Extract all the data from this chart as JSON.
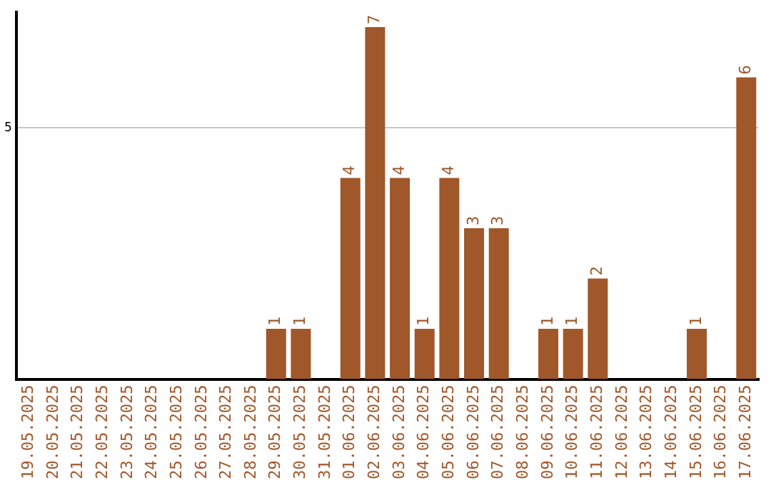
{
  "chart_data": {
    "type": "bar",
    "categories": [
      "19.05.2025",
      "20.05.2025",
      "21.05.2025",
      "22.05.2025",
      "23.05.2025",
      "24.05.2025",
      "25.05.2025",
      "26.05.2025",
      "27.05.2025",
      "28.05.2025",
      "29.05.2025",
      "30.05.2025",
      "31.05.2025",
      "01.06.2025",
      "02.06.2025",
      "03.06.2025",
      "04.06.2025",
      "05.06.2025",
      "06.06.2025",
      "07.06.2025",
      "08.06.2025",
      "09.06.2025",
      "10.06.2025",
      "11.06.2025",
      "12.06.2025",
      "13.06.2025",
      "14.06.2025",
      "15.06.2025",
      "16.06.2025",
      "17.06.2025"
    ],
    "values": [
      null,
      null,
      null,
      null,
      null,
      null,
      null,
      null,
      null,
      null,
      1,
      1,
      null,
      4,
      7,
      4,
      1,
      4,
      3,
      3,
      null,
      1,
      1,
      2,
      null,
      null,
      null,
      1,
      null,
      6
    ],
    "color": "#a0572a",
    "ylim": [
      0,
      7.3
    ],
    "yticks": [
      5
    ],
    "grid": "y",
    "legend": false,
    "data_labels": true
  }
}
